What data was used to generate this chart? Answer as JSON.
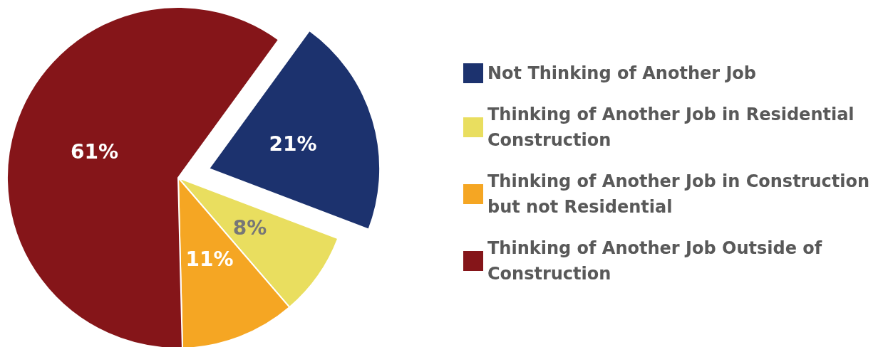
{
  "chart_data": {
    "type": "pie",
    "categories": [
      "Not Thinking of Another Job",
      "Thinking of Another Job in Residential Construction",
      "Thinking of Another Job in Construction but not Residential",
      "Thinking of Another Job Outside of Construction"
    ],
    "values": [
      21,
      8,
      11,
      61
    ],
    "colors": [
      "#1c326e",
      "#e9de5f",
      "#f5a623",
      "#851519"
    ],
    "value_labels": [
      "21%",
      "8%",
      "11%",
      "61%"
    ],
    "legend": "right"
  }
}
